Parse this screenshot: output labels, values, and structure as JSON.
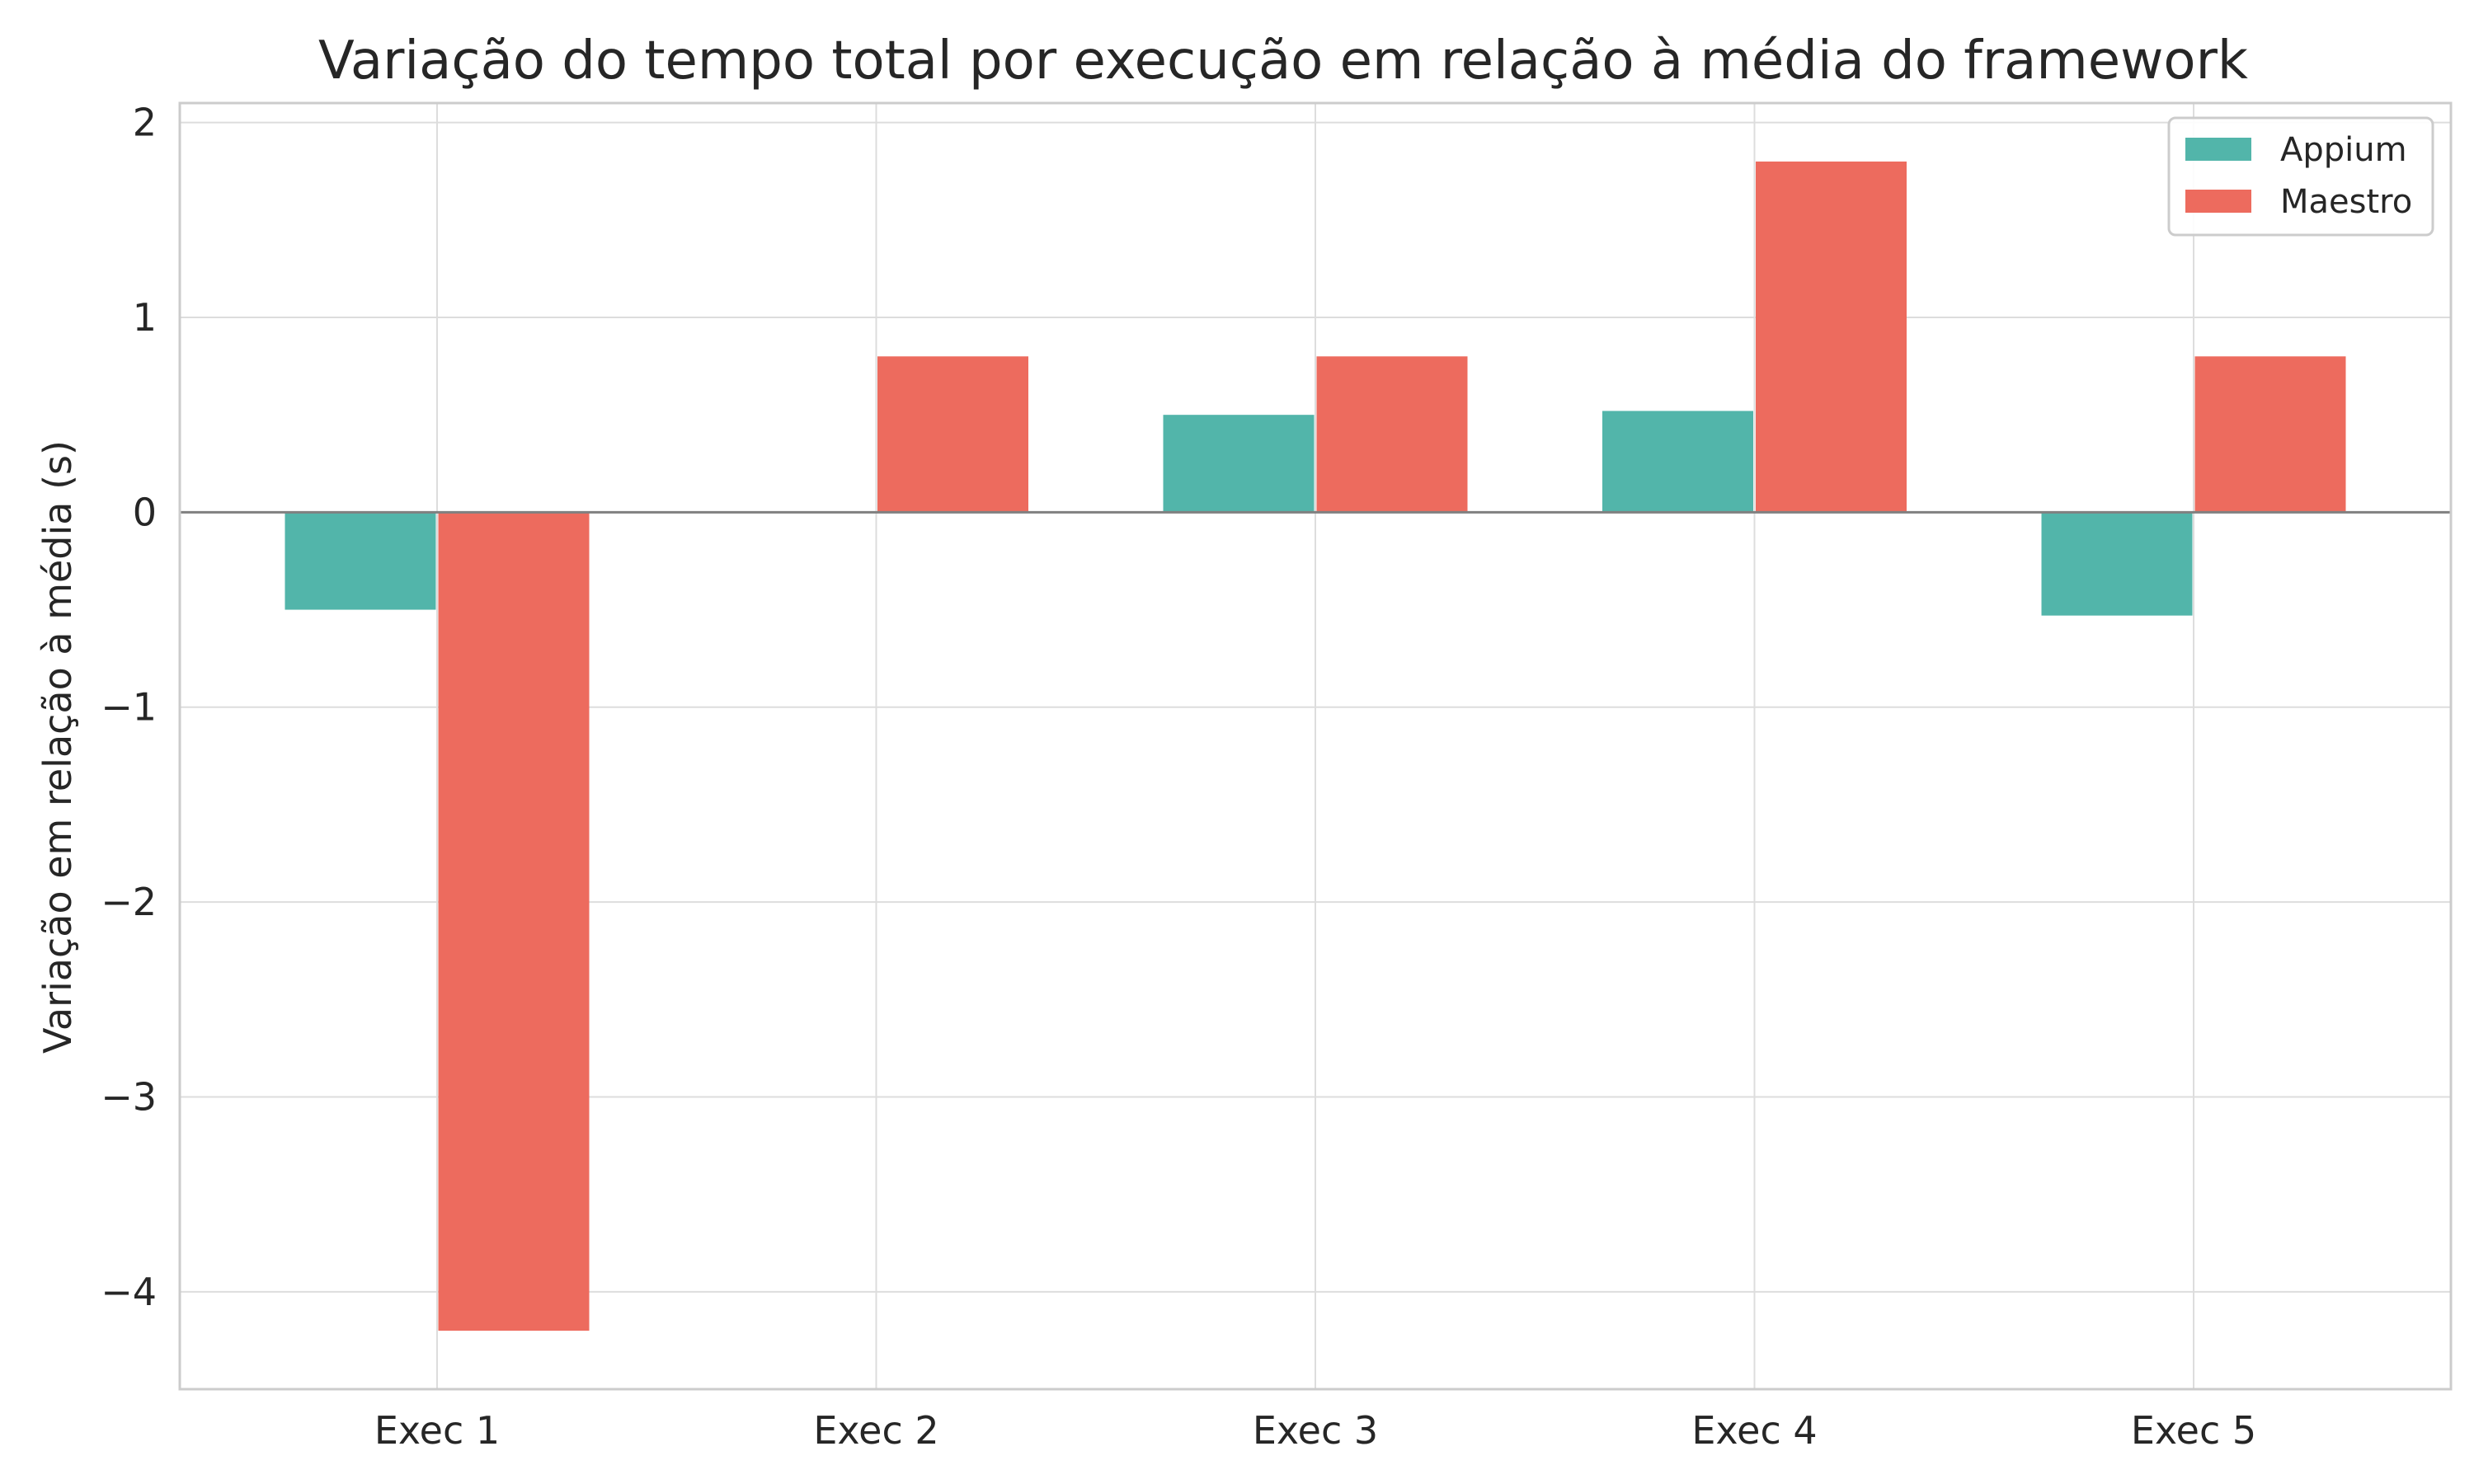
{
  "chart_data": {
    "type": "bar",
    "title": "Variação do tempo total por execução em relação à média do framework",
    "xlabel": "",
    "ylabel": "Variação em relação à média (s)",
    "categories": [
      "Exec 1",
      "Exec 2",
      "Exec 3",
      "Exec 4",
      "Exec 5"
    ],
    "series": [
      {
        "name": "Appium",
        "color": "#52b5aa",
        "values": [
          -0.5,
          0.0,
          0.5,
          0.52,
          -0.53
        ]
      },
      {
        "name": "Maestro",
        "color": "#ed6b5e",
        "values": [
          -4.2,
          0.8,
          0.8,
          1.8,
          0.8
        ]
      }
    ],
    "ylim": [
      -4.5,
      2.1
    ],
    "yticks": [
      2,
      1,
      0,
      -1,
      -2,
      -3,
      -4
    ],
    "ytick_labels": [
      "2",
      "1",
      "0",
      "−1",
      "−2",
      "−3",
      "−4"
    ],
    "grid": true,
    "legend_position": "top-right",
    "zero_line": true
  }
}
